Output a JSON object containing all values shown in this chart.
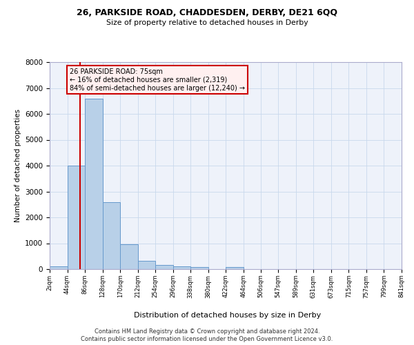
{
  "title1": "26, PARKSIDE ROAD, CHADDESDEN, DERBY, DE21 6QQ",
  "title2": "Size of property relative to detached houses in Derby",
  "xlabel": "Distribution of detached houses by size in Derby",
  "ylabel": "Number of detached properties",
  "bar_color": "#b8d0e8",
  "bar_edge_color": "#6699cc",
  "background_color": "#eef2fa",
  "grid_color": "#c8d8ec",
  "annotation_text": "26 PARKSIDE ROAD: 75sqm\n← 16% of detached houses are smaller (2,319)\n84% of semi-detached houses are larger (12,240) →",
  "footer1": "Contains HM Land Registry data © Crown copyright and database right 2024.",
  "footer2": "Contains public sector information licensed under the Open Government Licence v3.0.",
  "property_size": 75,
  "bin_edges": [
    2,
    44,
    86,
    128,
    170,
    212,
    254,
    296,
    338,
    380,
    422,
    464,
    506,
    547,
    589,
    631,
    673,
    715,
    757,
    799,
    841
  ],
  "bar_heights": [
    100,
    4000,
    6600,
    2600,
    950,
    320,
    150,
    120,
    80,
    0,
    80,
    0,
    0,
    0,
    0,
    0,
    0,
    0,
    0,
    0
  ],
  "ylim": [
    0,
    8000
  ],
  "yticks": [
    0,
    1000,
    2000,
    3000,
    4000,
    5000,
    6000,
    7000,
    8000
  ],
  "red_line_color": "#cc0000",
  "annotation_box_facecolor": "#fff0f0",
  "annotation_box_edgecolor": "#cc0000"
}
